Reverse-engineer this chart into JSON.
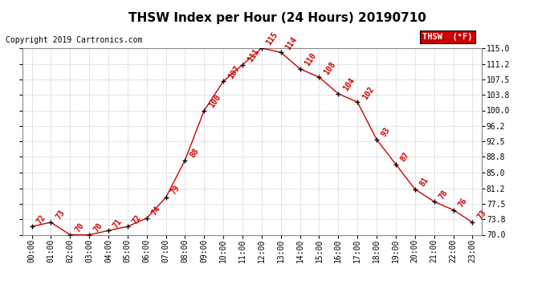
{
  "title": "THSW Index per Hour (24 Hours) 20190710",
  "copyright": "Copyright 2019 Cartronics.com",
  "legend_label": "THSW  (°F)",
  "hours": [
    0,
    1,
    2,
    3,
    4,
    5,
    6,
    7,
    8,
    9,
    10,
    11,
    12,
    13,
    14,
    15,
    16,
    17,
    18,
    19,
    20,
    21,
    22,
    23
  ],
  "values": [
    72,
    73,
    70,
    70,
    71,
    72,
    74,
    79,
    88,
    100,
    107,
    111,
    115,
    114,
    110,
    108,
    104,
    102,
    93,
    87,
    81,
    78,
    76,
    73
  ],
  "xlabels": [
    "00:00",
    "01:00",
    "02:00",
    "03:00",
    "04:00",
    "05:00",
    "06:00",
    "07:00",
    "08:00",
    "09:00",
    "10:00",
    "11:00",
    "12:00",
    "13:00",
    "14:00",
    "15:00",
    "16:00",
    "17:00",
    "18:00",
    "19:00",
    "20:00",
    "21:00",
    "22:00",
    "23:00"
  ],
  "ylim": [
    70.0,
    115.0
  ],
  "yticks": [
    70.0,
    73.8,
    77.5,
    81.2,
    85.0,
    88.8,
    92.5,
    96.2,
    100.0,
    103.8,
    107.5,
    111.2,
    115.0
  ],
  "ytick_labels": [
    "70.0",
    "73.8",
    "77.5",
    "81.2",
    "85.0",
    "88.8",
    "92.5",
    "96.2",
    "100.0",
    "103.8",
    "107.5",
    "111.2",
    "115.0"
  ],
  "line_color": "#cc0000",
  "marker_color": "#000000",
  "bg_color": "#ffffff",
  "grid_color": "#c8c8c8",
  "title_fontsize": 11,
  "label_fontsize": 7,
  "annot_fontsize": 7,
  "copyright_fontsize": 7,
  "legend_bg": "#cc0000",
  "legend_fg": "#ffffff"
}
